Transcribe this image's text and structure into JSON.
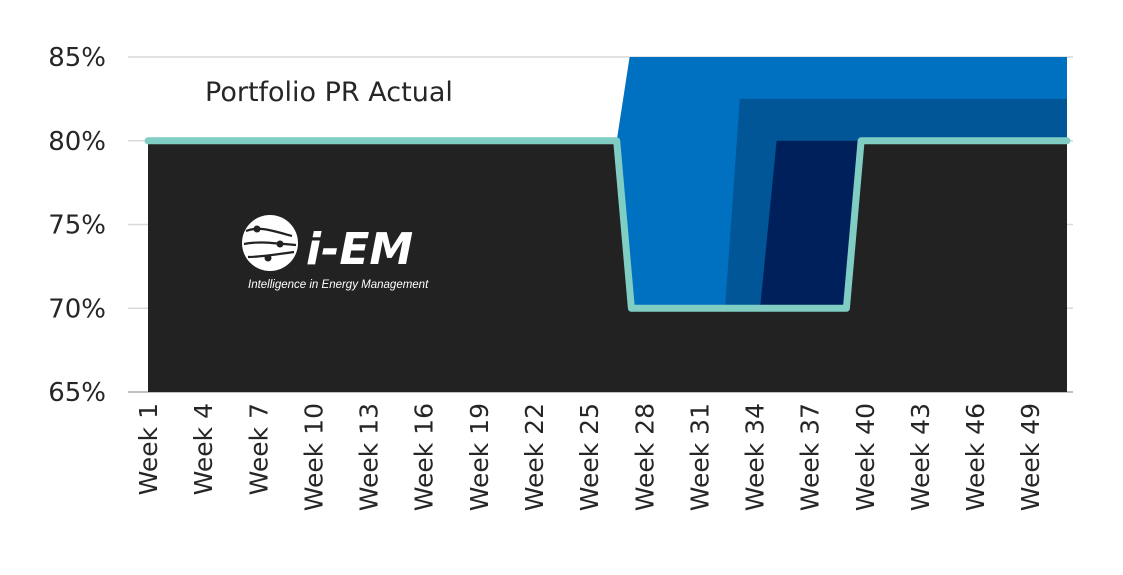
{
  "chart_data": {
    "type": "area",
    "ylim": [
      65,
      85
    ],
    "yticks": [
      "65%",
      "70%",
      "75%",
      "80%",
      "85%"
    ],
    "x_tick_labels": [
      "Week 1",
      "Week 4",
      "Week 7",
      "Week 10",
      "Week 13",
      "Week 16",
      "Week 19",
      "Week 22",
      "Week 25",
      "Week 28",
      "Week 31",
      "Week 34",
      "Week 37",
      "Week 40",
      "Week 43",
      "Week 46",
      "Week 49"
    ],
    "x_tick_weeks": [
      1,
      4,
      7,
      10,
      13,
      16,
      19,
      22,
      25,
      28,
      31,
      34,
      37,
      40,
      43,
      46,
      49
    ],
    "x_range": [
      1,
      51
    ],
    "grid": true,
    "series_label": "Portfolio PR Actual",
    "series": [
      {
        "name": "Portfolio PR Actual",
        "style": "line",
        "color": "#7fcdc3",
        "points": [
          [
            1,
            80
          ],
          [
            26.5,
            80
          ],
          [
            27.3,
            70
          ],
          [
            39,
            70
          ],
          [
            39.8,
            80
          ],
          [
            51,
            80
          ]
        ]
      }
    ],
    "bands": [
      {
        "color": "#0070c0",
        "points": [
          [
            26.5,
            80
          ],
          [
            27.2,
            85
          ],
          [
            51,
            85
          ],
          [
            51,
            80
          ],
          [
            39.8,
            80
          ],
          [
            39,
            70
          ],
          [
            27.3,
            70
          ]
        ]
      },
      {
        "color": "#005696",
        "points": [
          [
            32.4,
            70
          ],
          [
            33.2,
            82.5
          ],
          [
            51,
            82.5
          ],
          [
            51,
            80
          ],
          [
            39.8,
            80
          ],
          [
            39,
            70
          ]
        ]
      },
      {
        "color": "#00205b",
        "points": [
          [
            34.3,
            70
          ],
          [
            35.2,
            80
          ],
          [
            39.8,
            80
          ],
          [
            39,
            70
          ]
        ]
      }
    ],
    "background_color": "#222222"
  },
  "logo": {
    "name": "i-EM",
    "tagline": "Intelligence in Energy Management"
  }
}
